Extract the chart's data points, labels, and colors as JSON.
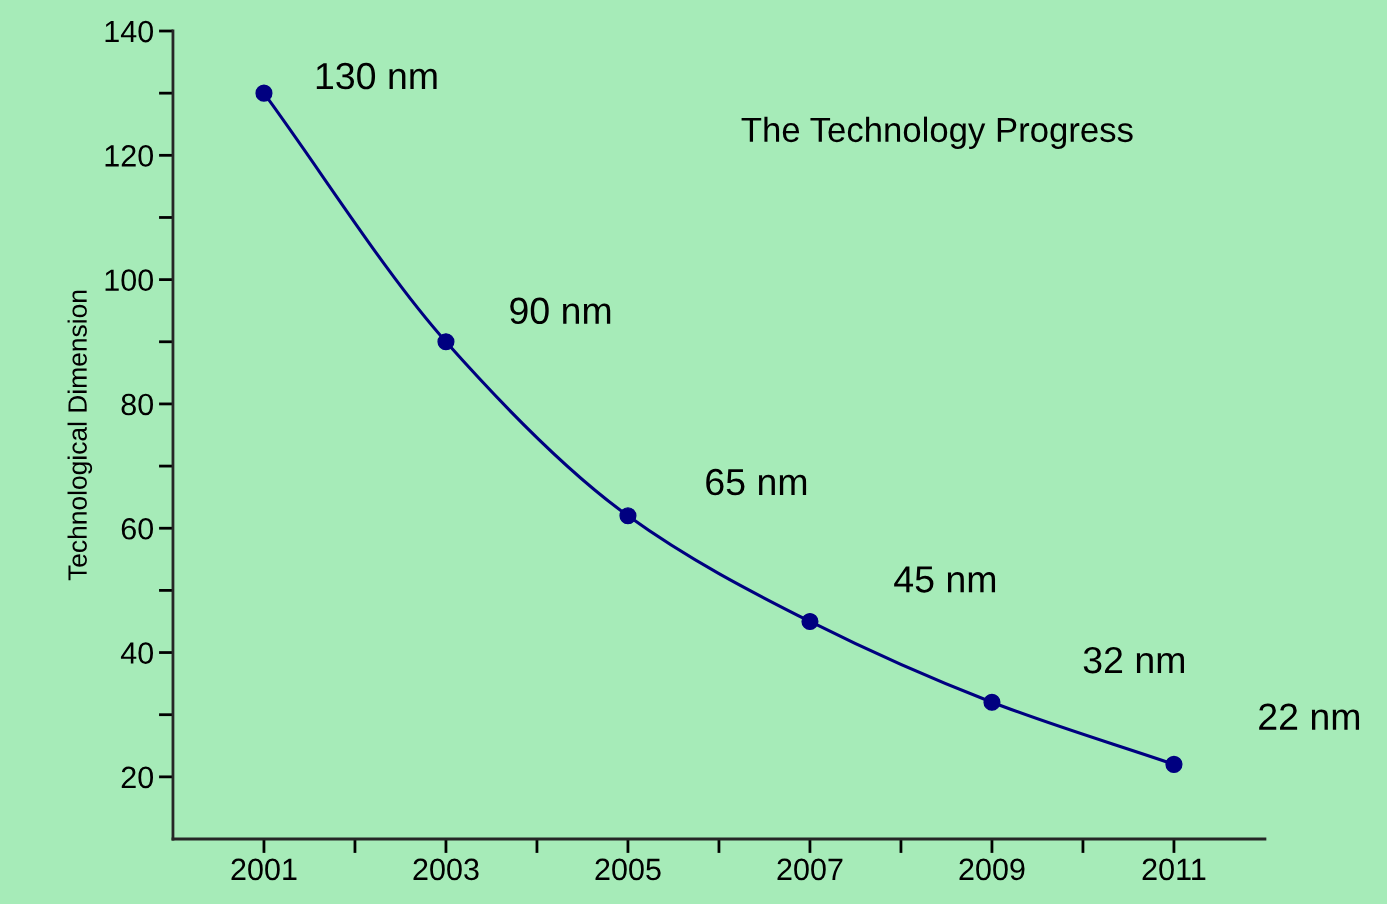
{
  "chart_data": {
    "type": "line",
    "title": "The Technology Progress",
    "ylabel": "Technological Dimension",
    "x": [
      2001,
      2003,
      2005,
      2007,
      2009,
      2011
    ],
    "series": [
      {
        "color": "#000080",
        "values": [
          130,
          90,
          62,
          45,
          32,
          22
        ]
      }
    ],
    "marker": "circle",
    "line_style": "solid",
    "grid": false,
    "legend": false,
    "xlim": [
      2000,
      2012
    ],
    "xticks": [
      2001,
      {
        "value": 2002,
        "label": null
      },
      2003,
      {
        "value": 2004,
        "label": null
      },
      2005,
      {
        "value": 2006,
        "label": null
      },
      2007,
      {
        "value": 2008,
        "label": null
      },
      2009,
      {
        "value": 2010,
        "label": null
      },
      2011
    ],
    "ylim": [
      10,
      140
    ],
    "yticks": [
      20,
      {
        "value": 30,
        "label": null
      },
      40,
      {
        "value": 50,
        "label": null
      },
      60,
      {
        "value": 70,
        "label": null
      },
      80,
      {
        "value": 90,
        "label": null
      },
      100,
      {
        "value": 110,
        "label": null
      },
      120,
      {
        "value": 130,
        "label": null
      },
      140
    ],
    "annotations": [
      {
        "text": "130 nm",
        "x": 2001,
        "y": 130
      },
      {
        "text": "90 nm",
        "x": 2003,
        "y": 90
      },
      {
        "text": "65 nm",
        "x": 2005,
        "y": 62
      },
      {
        "text": "45 nm",
        "x": 2007,
        "y": 45
      },
      {
        "text": "32 nm",
        "x": 2009,
        "y": 32
      },
      {
        "text": "22 nm",
        "x": 2011,
        "y": 22
      }
    ]
  }
}
